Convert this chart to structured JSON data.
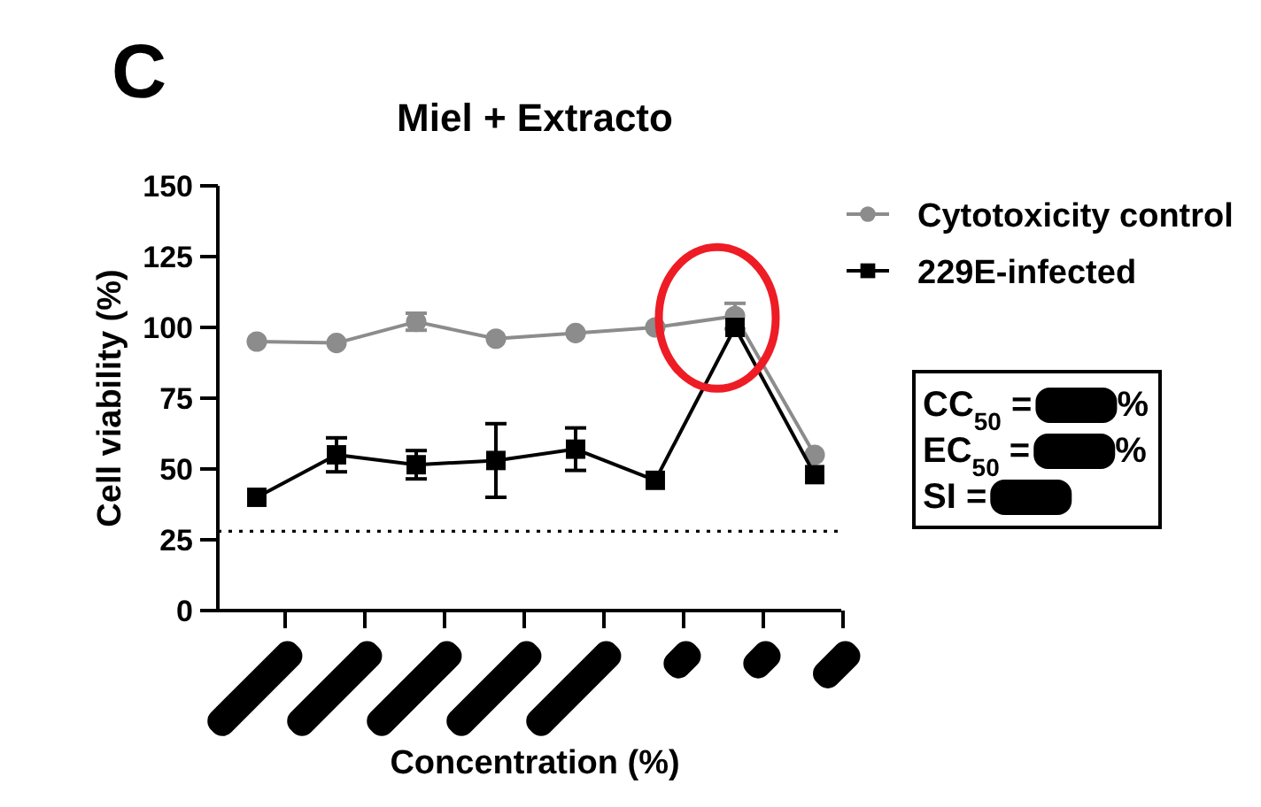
{
  "chart_data": {
    "type": "line",
    "title": "Miel + Extracto",
    "xlabel": "Concentration (%)",
    "ylabel": "Cell viability (%)",
    "categories": [
      null,
      null,
      null,
      null,
      null,
      null,
      null,
      null
    ],
    "ylim": [
      0,
      150
    ],
    "yticks": [
      0,
      25,
      50,
      75,
      100,
      125,
      150
    ],
    "legend": "top right",
    "series": [
      {
        "name": "Cytotoxicity control",
        "color": "#8c8c8c",
        "marker": "circle",
        "values": [
          95,
          94.5,
          102,
          96,
          98,
          100,
          104,
          55
        ],
        "errors": [
          null,
          null,
          3,
          null,
          null,
          null,
          4.5,
          null
        ]
      },
      {
        "name": "229E-infected",
        "color": "#000000",
        "marker": "square",
        "values": [
          40,
          55,
          51.5,
          53,
          57,
          46,
          100,
          48
        ],
        "errors": [
          null,
          6,
          5,
          13,
          7.5,
          null,
          null,
          null
        ]
      }
    ],
    "ref_lines": [
      {
        "axis": "y",
        "value": 28,
        "line_style": "dotted",
        "color": "#000000"
      }
    ],
    "annotations": [
      "C",
      "CC$_{50}$ =",
      "%",
      "EC$_{50}$ =",
      "%",
      "SI ="
    ]
  }
}
